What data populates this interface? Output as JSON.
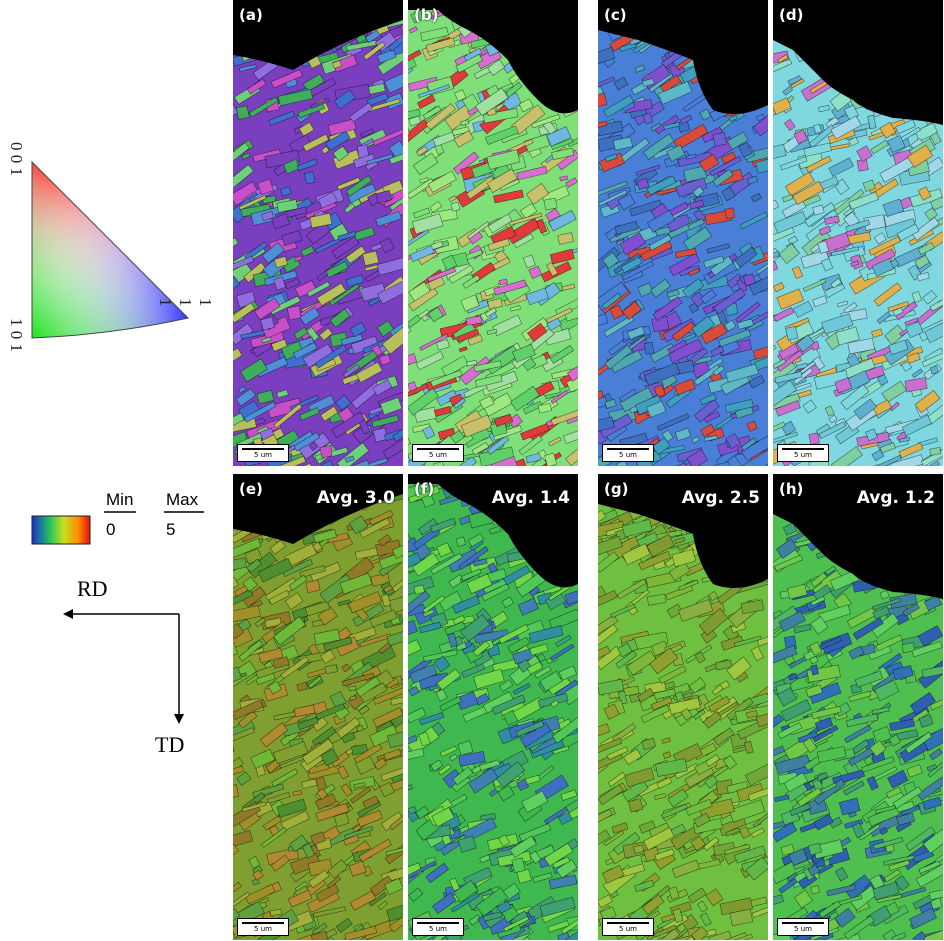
{
  "ipf_legend": {
    "vertex_top": "0 0 1",
    "vertex_bottom_left": "1 0 1",
    "vertex_right": "1 1 1"
  },
  "kam_scale": {
    "min_label": "Min",
    "max_label": "Max",
    "min_value": "0",
    "max_value": "5"
  },
  "directions": {
    "horizontal": "RD",
    "vertical": "TD"
  },
  "scale_bar_text": "5 um",
  "panels": [
    {
      "label": "(a)",
      "avg": "",
      "palette": [
        "#7a3fbf",
        "#3fae5a",
        "#c84fc7",
        "#4f8fd8",
        "#6fd07a",
        "#8f6fe0",
        "#b9bf5a",
        "#3f6fcf"
      ]
    },
    {
      "label": "(b)",
      "avg": "",
      "palette": [
        "#7fe07a",
        "#5fd06a",
        "#9fe87f",
        "#e03a3a",
        "#d86fd0",
        "#c8c06a",
        "#6fb8e0",
        "#a0e0a0"
      ]
    },
    {
      "label": "(c)",
      "avg": "",
      "palette": [
        "#4a7fd8",
        "#3f9fc0",
        "#6a5fd0",
        "#5fb8c8",
        "#3f6fbf",
        "#d84a3a",
        "#7f4fcf",
        "#4fa8b0"
      ]
    },
    {
      "label": "(d)",
      "avg": "",
      "palette": [
        "#7fd8e0",
        "#6fc8d8",
        "#5fb0d0",
        "#8fe0c8",
        "#a0d8e8",
        "#c86fd0",
        "#e0b04a",
        "#7fcfa0"
      ]
    },
    {
      "label": "(e)",
      "avg": "Avg. 3.0",
      "palette": [
        "#7fa030",
        "#a0902a",
        "#5fa040",
        "#8f7a28",
        "#6fb838",
        "#b08a30",
        "#4f8f30",
        "#9faf3a"
      ]
    },
    {
      "label": "(f)",
      "avg": "Avg. 1.4",
      "palette": [
        "#3fb850",
        "#4fc858",
        "#2f8fa0",
        "#3f70c0",
        "#5fd060",
        "#3fa070",
        "#6fd848",
        "#4080b0"
      ]
    },
    {
      "label": "(g)",
      "avg": "Avg. 2.5",
      "palette": [
        "#6fc040",
        "#7fb838",
        "#8fa030",
        "#5fb848",
        "#9fc840",
        "#7f9a30",
        "#6fa838",
        "#88b040"
      ]
    },
    {
      "label": "(h)",
      "avg": "Avg. 1.2",
      "palette": [
        "#4fc050",
        "#3f9f70",
        "#2f60b0",
        "#5fd060",
        "#3f80a0",
        "#6fc848",
        "#3070b8",
        "#50b860"
      ]
    }
  ]
}
